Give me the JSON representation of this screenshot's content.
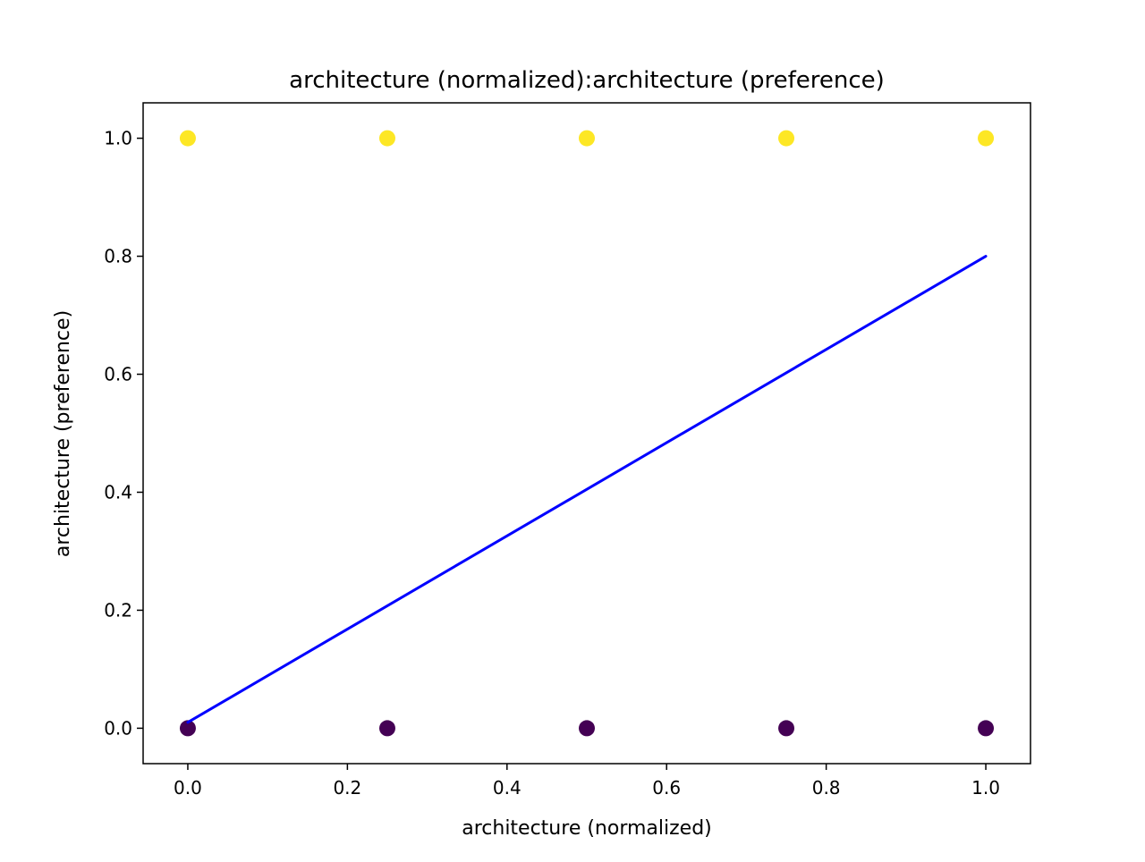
{
  "chart_data": {
    "type": "scatter",
    "title": "architecture (normalized):architecture (preference)",
    "xlabel": "architecture (normalized)",
    "ylabel": "architecture (preference)",
    "xlim": [
      -0.056,
      1.056
    ],
    "ylim": [
      -0.06,
      1.06
    ],
    "x_ticks": [
      "0.0",
      "0.2",
      "0.4",
      "0.6",
      "0.8",
      "1.0"
    ],
    "y_ticks": [
      "0.0",
      "0.2",
      "0.4",
      "0.6",
      "0.8",
      "1.0"
    ],
    "grid": false,
    "colors": {
      "class_1": "#fde725",
      "class_0": "#440154",
      "fit_line": "#0000ff"
    },
    "series": [
      {
        "points": [
          {
            "x": 0.0,
            "y": 1.0,
            "class": 1
          },
          {
            "x": 0.25,
            "y": 1.0,
            "class": 1
          },
          {
            "x": 0.5,
            "y": 1.0,
            "class": 1
          },
          {
            "x": 0.75,
            "y": 1.0,
            "class": 1
          },
          {
            "x": 1.0,
            "y": 1.0,
            "class": 1
          },
          {
            "x": 0.0,
            "y": 0.0,
            "class": 0
          },
          {
            "x": 0.25,
            "y": 0.0,
            "class": 0
          },
          {
            "x": 0.5,
            "y": 0.0,
            "class": 0
          },
          {
            "x": 0.75,
            "y": 0.0,
            "class": 0
          },
          {
            "x": 1.0,
            "y": 0.0,
            "class": 0
          }
        ]
      }
    ],
    "fit_line": {
      "x": [
        0.0,
        1.0
      ],
      "y": [
        0.01,
        0.8
      ]
    }
  }
}
